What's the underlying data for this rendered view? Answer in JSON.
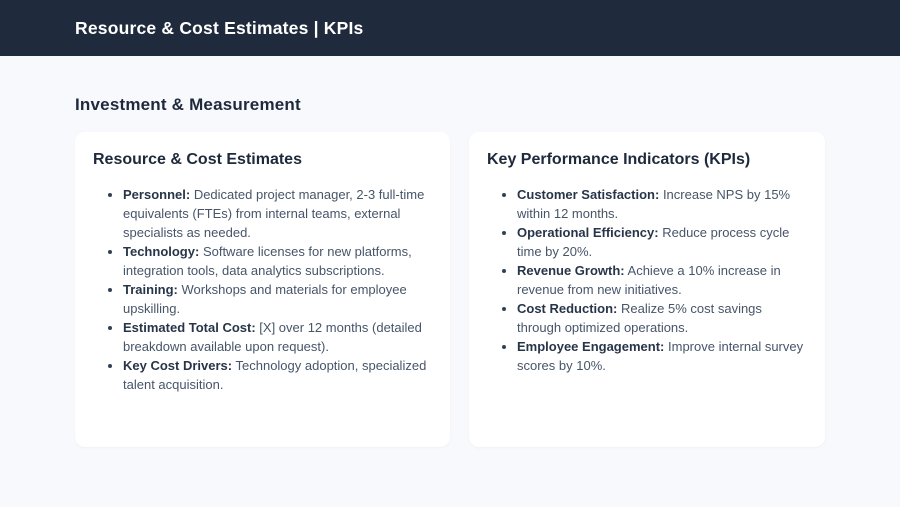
{
  "header": {
    "title": "Resource & Cost Estimates | KPIs"
  },
  "section": {
    "title": "Investment & Measurement"
  },
  "cards": [
    {
      "title": "Resource & Cost Estimates",
      "items": [
        {
          "label": "Personnel:",
          "text": "Dedicated project manager, 2-3 full-time equivalents (FTEs) from internal teams, external specialists as needed."
        },
        {
          "label": "Technology:",
          "text": "Software licenses for new platforms, integration tools, data analytics subscriptions."
        },
        {
          "label": "Training:",
          "text": "Workshops and materials for employee upskilling."
        },
        {
          "label": "Estimated Total Cost:",
          "text": "[X] over 12 months (detailed breakdown available upon request)."
        },
        {
          "label": "Key Cost Drivers:",
          "text": "Technology adoption, specialized talent acquisition."
        }
      ]
    },
    {
      "title": "Key Performance Indicators (KPIs)",
      "items": [
        {
          "label": "Customer Satisfaction:",
          "text": "Increase NPS by 15% within 12 months."
        },
        {
          "label": "Operational Efficiency:",
          "text": "Reduce process cycle time by 20%."
        },
        {
          "label": "Revenue Growth:",
          "text": "Achieve a 10% increase in revenue from new initiatives."
        },
        {
          "label": "Cost Reduction:",
          "text": "Realize 5% cost savings through optimized operations."
        },
        {
          "label": "Employee Engagement:",
          "text": "Improve internal survey scores by 10%."
        }
      ]
    }
  ],
  "colors": {
    "header_bg": "#1f2a3c",
    "page_bg": "#f8f9fc",
    "card_bg": "#ffffff",
    "heading_text": "#1e293b",
    "body_text": "#475569",
    "header_text": "#ffffff"
  }
}
